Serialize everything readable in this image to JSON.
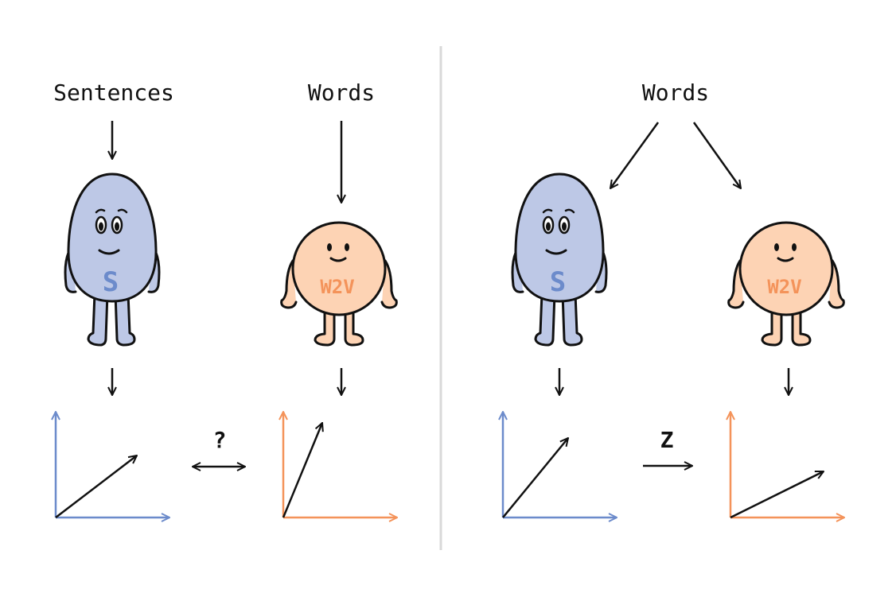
{
  "colors": {
    "sentence_body": "#BDC8E6",
    "sentence_accent": "#6C8BCB",
    "w2v_body": "#FDD3B4",
    "w2v_accent": "#F4935A",
    "stroke": "#111111",
    "divider": "#D9D9D9"
  },
  "left_panel": {
    "sentences_label": "Sentences",
    "words_label": "Words",
    "sentence_model_badge": "S",
    "w2v_model_badge": "W2V",
    "comparison_label": "?"
  },
  "right_panel": {
    "words_label": "Words",
    "sentence_model_badge": "S",
    "w2v_model_badge": "W2V",
    "mapping_label": "Z"
  },
  "icons": [
    "sentence-model-character",
    "word2vec-model-character",
    "vector-space-axes"
  ]
}
